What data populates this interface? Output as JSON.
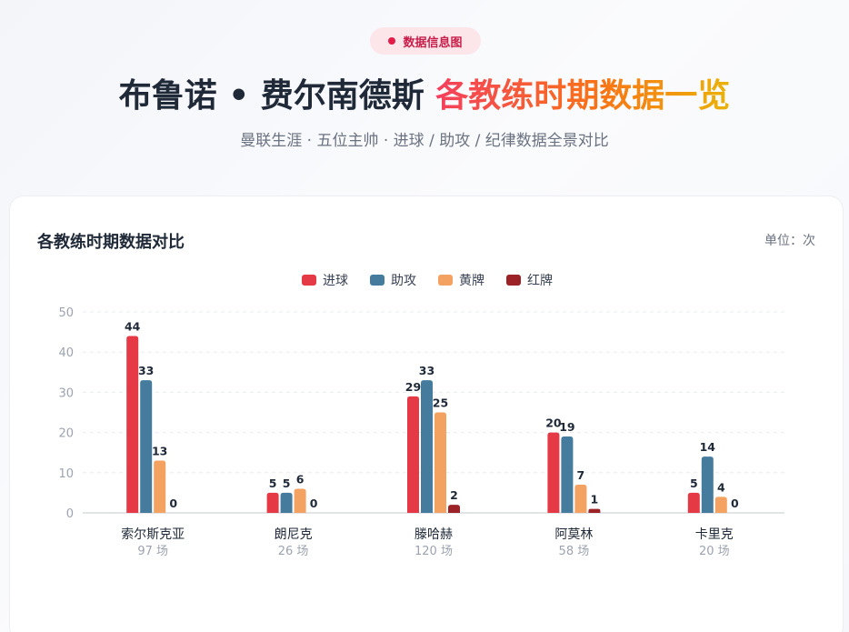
{
  "header": {
    "badge": "数据信息图",
    "title_main": "布鲁诺 • 费尔南德斯",
    "title_highlight": "各教练时期数据一览",
    "subtitle": "曼联生涯 · 五位主帅 · 进球 / 助攻 / 纪律数据全景对比"
  },
  "card": {
    "title": "各教练时期数据对比",
    "unit": "单位：次"
  },
  "colors": {
    "goals": "#e63946",
    "assists": "#457b9d",
    "yellow": "#f4a261",
    "red": "#9b2226",
    "badge_dot": "#e11d48"
  },
  "chart_data": {
    "type": "bar",
    "categories": [
      "索尔斯克亚",
      "朗尼克",
      "滕哈赫",
      "阿莫林",
      "卡里克"
    ],
    "category_sublabels": [
      "97 场",
      "26 场",
      "120 场",
      "58 场",
      "20 场"
    ],
    "series": [
      {
        "name": "进球",
        "values": [
          44,
          5,
          29,
          20,
          5
        ]
      },
      {
        "name": "助攻",
        "values": [
          33,
          5,
          33,
          19,
          14
        ]
      },
      {
        "name": "黄牌",
        "values": [
          13,
          6,
          25,
          7,
          4
        ]
      },
      {
        "name": "红牌",
        "values": [
          0,
          0,
          2,
          1,
          0
        ]
      }
    ],
    "yticks": [
      "0",
      "10",
      "20",
      "30",
      "40",
      "50"
    ],
    "ylim": [
      0,
      50
    ],
    "grid": true,
    "legend": "top-center"
  }
}
